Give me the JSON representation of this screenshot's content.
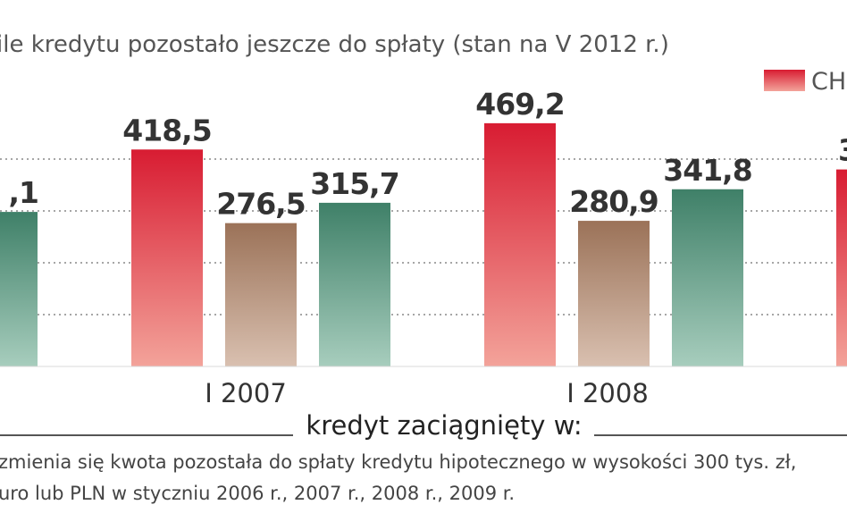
{
  "chart_data": {
    "type": "bar",
    "subtitle": "ile kredytu pozostało jeszcze do spłaty (stan na V 2012 r.)",
    "xlabel": "kredyt zaciągnięty w:",
    "categories": [
      "",
      "I 2007",
      "I 2008",
      ""
    ],
    "series": [
      {
        "name": "CH",
        "color": "#e0303f",
        "values": [
          null,
          418.5,
          469.2,
          null
        ]
      },
      {
        "color": "#a47c62",
        "values": [
          null,
          276.5,
          280.9,
          null
        ]
      },
      {
        "color": "#4f8e78",
        "values": [
          null,
          315.7,
          341.8,
          null
        ]
      }
    ],
    "value_labels": {
      "partial_left": ",1",
      "partial_right": "3"
    },
    "ylim": [
      0,
      480
    ],
    "grid": true,
    "legend": "top-right",
    "caption": [
      "zmienia się kwota pozostała do spłaty kredytu hipotecznego w wysokości 300 tys. zł,",
      "uro lub PLN w styczniu 2006 r., 2007 r., 2008 r., 2009 r."
    ]
  }
}
